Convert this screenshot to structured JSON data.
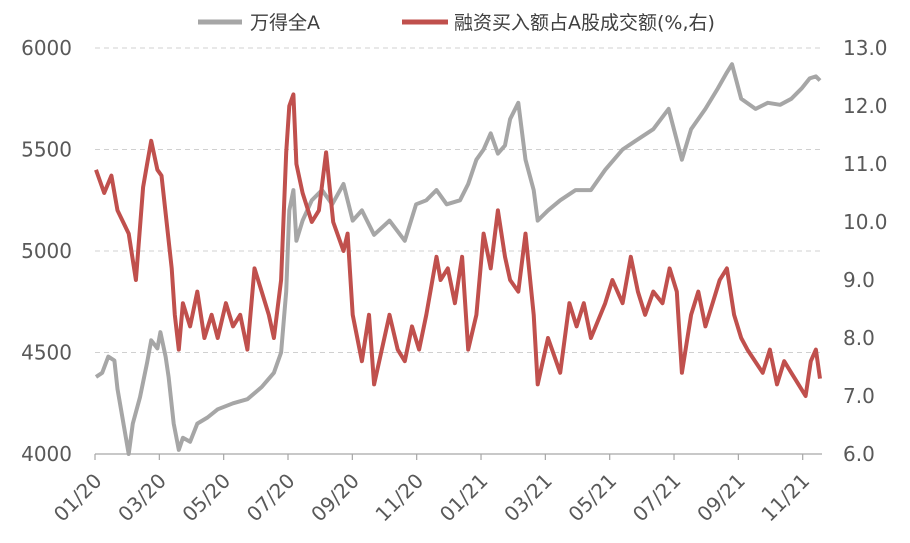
{
  "chart_data": {
    "type": "line",
    "title": "",
    "legend_position": "top",
    "grid": true,
    "x_tick_labels": [
      "01/20",
      "03/20",
      "05/20",
      "07/20",
      "09/20",
      "11/20",
      "01/21",
      "03/21",
      "05/21",
      "07/21",
      "09/21",
      "11/21"
    ],
    "y_left": {
      "ticks": [
        "4000",
        "4500",
        "5000",
        "5500",
        "6000"
      ],
      "range": [
        4000,
        6000
      ]
    },
    "y_right": {
      "ticks": [
        "6.0",
        "7.0",
        "8.0",
        "9.0",
        "10.0",
        "11.0",
        "12.0",
        "13.0"
      ],
      "range": [
        6.0,
        13.0
      ]
    },
    "series": [
      {
        "name": "万得全A",
        "axis": "left",
        "color": "#a6a6a6",
        "points": [
          [
            "2020-01-02",
            4380
          ],
          [
            "2020-01-08",
            4400
          ],
          [
            "2020-01-14",
            4480
          ],
          [
            "2020-01-20",
            4460
          ],
          [
            "2020-01-23",
            4320
          ],
          [
            "2020-02-03",
            4000
          ],
          [
            "2020-02-07",
            4150
          ],
          [
            "2020-02-14",
            4280
          ],
          [
            "2020-02-21",
            4450
          ],
          [
            "2020-02-25",
            4560
          ],
          [
            "2020-03-02",
            4520
          ],
          [
            "2020-03-05",
            4600
          ],
          [
            "2020-03-10",
            4480
          ],
          [
            "2020-03-13",
            4380
          ],
          [
            "2020-03-18",
            4150
          ],
          [
            "2020-03-23",
            4020
          ],
          [
            "2020-03-27",
            4080
          ],
          [
            "2020-04-03",
            4060
          ],
          [
            "2020-04-10",
            4150
          ],
          [
            "2020-04-20",
            4180
          ],
          [
            "2020-04-30",
            4220
          ],
          [
            "2020-05-15",
            4250
          ],
          [
            "2020-05-29",
            4270
          ],
          [
            "2020-06-12",
            4330
          ],
          [
            "2020-06-24",
            4400
          ],
          [
            "2020-07-01",
            4500
          ],
          [
            "2020-07-06",
            4800
          ],
          [
            "2020-07-09",
            5200
          ],
          [
            "2020-07-13",
            5300
          ],
          [
            "2020-07-16",
            5050
          ],
          [
            "2020-07-22",
            5150
          ],
          [
            "2020-07-31",
            5250
          ],
          [
            "2020-08-10",
            5300
          ],
          [
            "2020-08-20",
            5230
          ],
          [
            "2020-08-31",
            5330
          ],
          [
            "2020-09-09",
            5150
          ],
          [
            "2020-09-18",
            5200
          ],
          [
            "2020-09-30",
            5080
          ],
          [
            "2020-10-15",
            5150
          ],
          [
            "2020-10-30",
            5050
          ],
          [
            "2020-11-10",
            5230
          ],
          [
            "2020-11-20",
            5250
          ],
          [
            "2020-11-30",
            5300
          ],
          [
            "2020-12-10",
            5230
          ],
          [
            "2020-12-23",
            5250
          ],
          [
            "2020-12-31",
            5330
          ],
          [
            "2021-01-08",
            5450
          ],
          [
            "2021-01-15",
            5500
          ],
          [
            "2021-01-22",
            5580
          ],
          [
            "2021-01-29",
            5480
          ],
          [
            "2021-02-05",
            5520
          ],
          [
            "2021-02-10",
            5650
          ],
          [
            "2021-02-18",
            5730
          ],
          [
            "2021-02-25",
            5450
          ],
          [
            "2021-03-05",
            5300
          ],
          [
            "2021-03-09",
            5150
          ],
          [
            "2021-03-19",
            5200
          ],
          [
            "2021-03-31",
            5250
          ],
          [
            "2021-04-15",
            5300
          ],
          [
            "2021-04-30",
            5300
          ],
          [
            "2021-05-14",
            5400
          ],
          [
            "2021-05-31",
            5500
          ],
          [
            "2021-06-15",
            5550
          ],
          [
            "2021-06-30",
            5600
          ],
          [
            "2021-07-15",
            5700
          ],
          [
            "2021-07-28",
            5450
          ],
          [
            "2021-08-06",
            5600
          ],
          [
            "2021-08-20",
            5700
          ],
          [
            "2021-09-01",
            5800
          ],
          [
            "2021-09-10",
            5880
          ],
          [
            "2021-09-15",
            5920
          ],
          [
            "2021-09-24",
            5750
          ],
          [
            "2021-10-08",
            5700
          ],
          [
            "2021-10-20",
            5730
          ],
          [
            "2021-11-01",
            5720
          ],
          [
            "2021-11-12",
            5750
          ],
          [
            "2021-11-22",
            5800
          ],
          [
            "2021-11-30",
            5850
          ],
          [
            "2021-12-06",
            5860
          ],
          [
            "2021-12-10",
            5840
          ]
        ]
      },
      {
        "name": "融资买入额占A股成交额(%,右)",
        "axis": "right",
        "color": "#c0504d",
        "points": [
          [
            "2020-01-02",
            10.9
          ],
          [
            "2020-01-10",
            10.5
          ],
          [
            "2020-01-17",
            10.8
          ],
          [
            "2020-01-23",
            10.2
          ],
          [
            "2020-02-03",
            9.8
          ],
          [
            "2020-02-10",
            9.0
          ],
          [
            "2020-02-17",
            10.6
          ],
          [
            "2020-02-21",
            11.0
          ],
          [
            "2020-02-25",
            11.4
          ],
          [
            "2020-03-02",
            10.9
          ],
          [
            "2020-03-06",
            10.8
          ],
          [
            "2020-03-11",
            10.0
          ],
          [
            "2020-03-16",
            9.2
          ],
          [
            "2020-03-19",
            8.4
          ],
          [
            "2020-03-23",
            7.8
          ],
          [
            "2020-03-27",
            8.6
          ],
          [
            "2020-04-03",
            8.2
          ],
          [
            "2020-04-10",
            8.8
          ],
          [
            "2020-04-17",
            8.0
          ],
          [
            "2020-04-24",
            8.4
          ],
          [
            "2020-04-30",
            8.0
          ],
          [
            "2020-05-08",
            8.6
          ],
          [
            "2020-05-15",
            8.2
          ],
          [
            "2020-05-22",
            8.4
          ],
          [
            "2020-05-29",
            7.8
          ],
          [
            "2020-06-05",
            9.2
          ],
          [
            "2020-06-12",
            8.8
          ],
          [
            "2020-06-19",
            8.4
          ],
          [
            "2020-06-24",
            8.0
          ],
          [
            "2020-07-01",
            9.0
          ],
          [
            "2020-07-06",
            11.2
          ],
          [
            "2020-07-09",
            12.0
          ],
          [
            "2020-07-13",
            12.2
          ],
          [
            "2020-07-16",
            11.0
          ],
          [
            "2020-07-22",
            10.5
          ],
          [
            "2020-07-31",
            10.0
          ],
          [
            "2020-08-07",
            10.2
          ],
          [
            "2020-08-14",
            11.2
          ],
          [
            "2020-08-21",
            10.0
          ],
          [
            "2020-08-31",
            9.5
          ],
          [
            "2020-09-04",
            9.8
          ],
          [
            "2020-09-09",
            8.4
          ],
          [
            "2020-09-18",
            7.6
          ],
          [
            "2020-09-25",
            8.4
          ],
          [
            "2020-09-30",
            7.2
          ],
          [
            "2020-10-15",
            8.4
          ],
          [
            "2020-10-23",
            7.8
          ],
          [
            "2020-10-30",
            7.6
          ],
          [
            "2020-11-06",
            8.2
          ],
          [
            "2020-11-13",
            7.8
          ],
          [
            "2020-11-20",
            8.4
          ],
          [
            "2020-11-30",
            9.4
          ],
          [
            "2020-12-04",
            9.0
          ],
          [
            "2020-12-11",
            9.2
          ],
          [
            "2020-12-18",
            8.6
          ],
          [
            "2020-12-25",
            9.4
          ],
          [
            "2020-12-31",
            7.8
          ],
          [
            "2021-01-08",
            8.4
          ],
          [
            "2021-01-15",
            9.8
          ],
          [
            "2021-01-22",
            9.2
          ],
          [
            "2021-01-29",
            10.2
          ],
          [
            "2021-02-05",
            9.4
          ],
          [
            "2021-02-10",
            9.0
          ],
          [
            "2021-02-18",
            8.8
          ],
          [
            "2021-02-25",
            9.8
          ],
          [
            "2021-03-05",
            8.4
          ],
          [
            "2021-03-09",
            7.2
          ],
          [
            "2021-03-19",
            8.0
          ],
          [
            "2021-03-31",
            7.4
          ],
          [
            "2021-04-09",
            8.6
          ],
          [
            "2021-04-16",
            8.2
          ],
          [
            "2021-04-23",
            8.6
          ],
          [
            "2021-04-30",
            8.0
          ],
          [
            "2021-05-14",
            8.6
          ],
          [
            "2021-05-21",
            9.0
          ],
          [
            "2021-05-31",
            8.6
          ],
          [
            "2021-06-08",
            9.4
          ],
          [
            "2021-06-15",
            8.8
          ],
          [
            "2021-06-22",
            8.4
          ],
          [
            "2021-06-30",
            8.8
          ],
          [
            "2021-07-09",
            8.6
          ],
          [
            "2021-07-16",
            9.2
          ],
          [
            "2021-07-23",
            8.8
          ],
          [
            "2021-07-28",
            7.4
          ],
          [
            "2021-08-06",
            8.4
          ],
          [
            "2021-08-13",
            8.8
          ],
          [
            "2021-08-20",
            8.2
          ],
          [
            "2021-08-27",
            8.6
          ],
          [
            "2021-09-03",
            9.0
          ],
          [
            "2021-09-10",
            9.2
          ],
          [
            "2021-09-17",
            8.4
          ],
          [
            "2021-09-24",
            8.0
          ],
          [
            "2021-09-30",
            7.8
          ],
          [
            "2021-10-15",
            7.4
          ],
          [
            "2021-10-22",
            7.8
          ],
          [
            "2021-10-29",
            7.2
          ],
          [
            "2021-11-05",
            7.6
          ],
          [
            "2021-11-12",
            7.4
          ],
          [
            "2021-11-19",
            7.2
          ],
          [
            "2021-11-26",
            7.0
          ],
          [
            "2021-12-01",
            7.6
          ],
          [
            "2021-12-06",
            7.8
          ],
          [
            "2021-12-10",
            7.3
          ]
        ]
      }
    ]
  }
}
